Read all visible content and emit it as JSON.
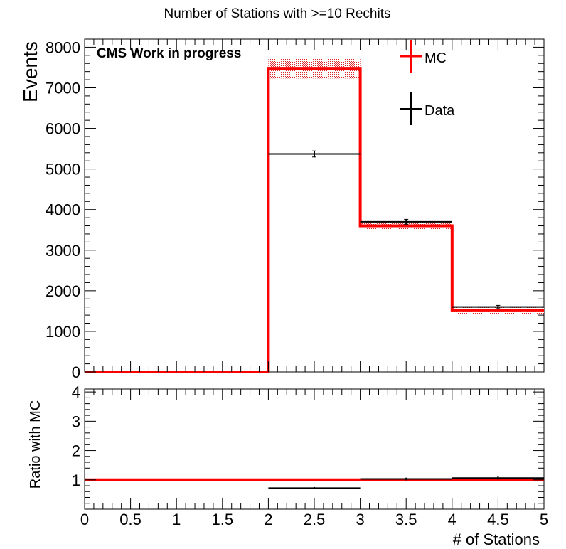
{
  "chart_data": [
    {
      "type": "histogram",
      "title": "Number of Stations with >=10 Rechits",
      "ylabel": "Events",
      "xlabel": "",
      "annotation": "CMS Work in progress",
      "xlim": [
        0,
        5
      ],
      "ylim": [
        0,
        8200
      ],
      "x_ticks": [
        "0",
        "0.5",
        "1",
        "1.5",
        "2",
        "2.5",
        "3",
        "3.5",
        "4",
        "4.5",
        "5"
      ],
      "y_ticks": [
        "0",
        "1000",
        "2000",
        "3000",
        "4000",
        "5000",
        "6000",
        "7000",
        "8000"
      ],
      "bin_edges": [
        0,
        1,
        2,
        3,
        4,
        5
      ],
      "legend": {
        "position": "top-right",
        "entries": [
          "MC",
          "Data"
        ]
      },
      "series": [
        {
          "name": "MC",
          "color": "#ff0000",
          "style": "step",
          "values": [
            0,
            0,
            7480,
            3600,
            1510
          ],
          "uncertainty_low": [
            0,
            0,
            7230,
            3490,
            1420
          ],
          "uncertainty_high": [
            0,
            0,
            7730,
            3720,
            1600
          ]
        },
        {
          "name": "Data",
          "color": "#000000",
          "style": "errorbar",
          "values": [
            0,
            0,
            5370,
            3700,
            1600
          ],
          "errors": [
            0,
            0,
            75,
            60,
            40
          ]
        }
      ]
    },
    {
      "type": "histogram",
      "title": "",
      "ylabel": "Ratio with MC",
      "xlabel": "# of Stations",
      "xlim": [
        0,
        5
      ],
      "ylim": [
        0,
        4.1
      ],
      "x_ticks": [
        "0",
        "0.5",
        "1",
        "1.5",
        "2",
        "2.5",
        "3",
        "3.5",
        "4",
        "4.5",
        "5"
      ],
      "y_ticks": [
        "1",
        "2",
        "3",
        "4"
      ],
      "bin_edges": [
        0,
        1,
        2,
        3,
        4,
        5
      ],
      "series": [
        {
          "name": "MC",
          "color": "#ff0000",
          "style": "step",
          "values": [
            1,
            1,
            1,
            1,
            1
          ],
          "uncertainty_low": [
            1,
            1,
            0.97,
            0.97,
            0.95
          ],
          "uncertainty_high": [
            1,
            1,
            1.03,
            1.03,
            1.05
          ]
        },
        {
          "name": "Data",
          "color": "#000000",
          "style": "errorbar",
          "values": [
            null,
            null,
            0.72,
            1.03,
            1.06
          ],
          "errors": [
            0,
            0,
            0.01,
            0.02,
            0.03
          ]
        }
      ]
    }
  ]
}
